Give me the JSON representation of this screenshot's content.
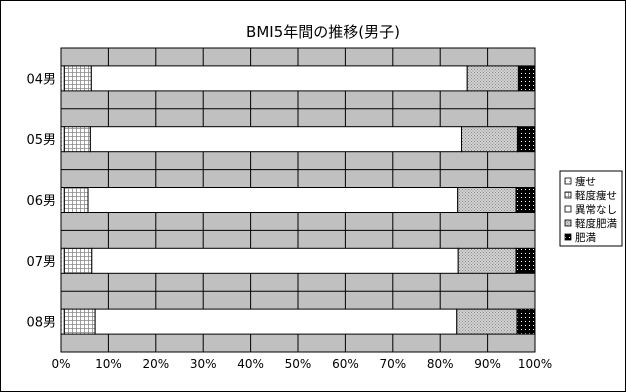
{
  "chart_data": {
    "type": "bar",
    "orientation": "horizontal",
    "stacked": "percent",
    "title": "BMI5年間の推移(男子)",
    "categories": [
      "04男",
      "05男",
      "06男",
      "07男",
      "08男"
    ],
    "xlim": [
      0,
      100
    ],
    "x_ticks": [
      "0%",
      "10%",
      "20%",
      "30%",
      "40%",
      "50%",
      "60%",
      "70%",
      "80%",
      "90%",
      "100%"
    ],
    "grid": true,
    "legend_position": "right",
    "series": [
      {
        "name": "痩せ",
        "color": "#ffffff",
        "pattern": "dots",
        "values": [
          0.7,
          0.7,
          0.7,
          0.7,
          0.7
        ]
      },
      {
        "name": "軽度痩せ",
        "color": "#ffffff",
        "pattern": "grid",
        "values": [
          5.7,
          5.5,
          5.0,
          5.8,
          6.5
        ]
      },
      {
        "name": "異常なし",
        "color": "#ffffff",
        "pattern": "none",
        "values": [
          79.3,
          78.3,
          78.0,
          77.3,
          76.3
        ]
      },
      {
        "name": "軽度肥満",
        "color": "#c8c8c8",
        "pattern": "fine-dots",
        "values": [
          10.8,
          11.8,
          12.3,
          12.2,
          12.7
        ]
      },
      {
        "name": "肥満",
        "color": "#000000",
        "pattern": "sparse",
        "values": [
          3.5,
          3.7,
          4.0,
          4.0,
          3.8
        ]
      }
    ]
  }
}
